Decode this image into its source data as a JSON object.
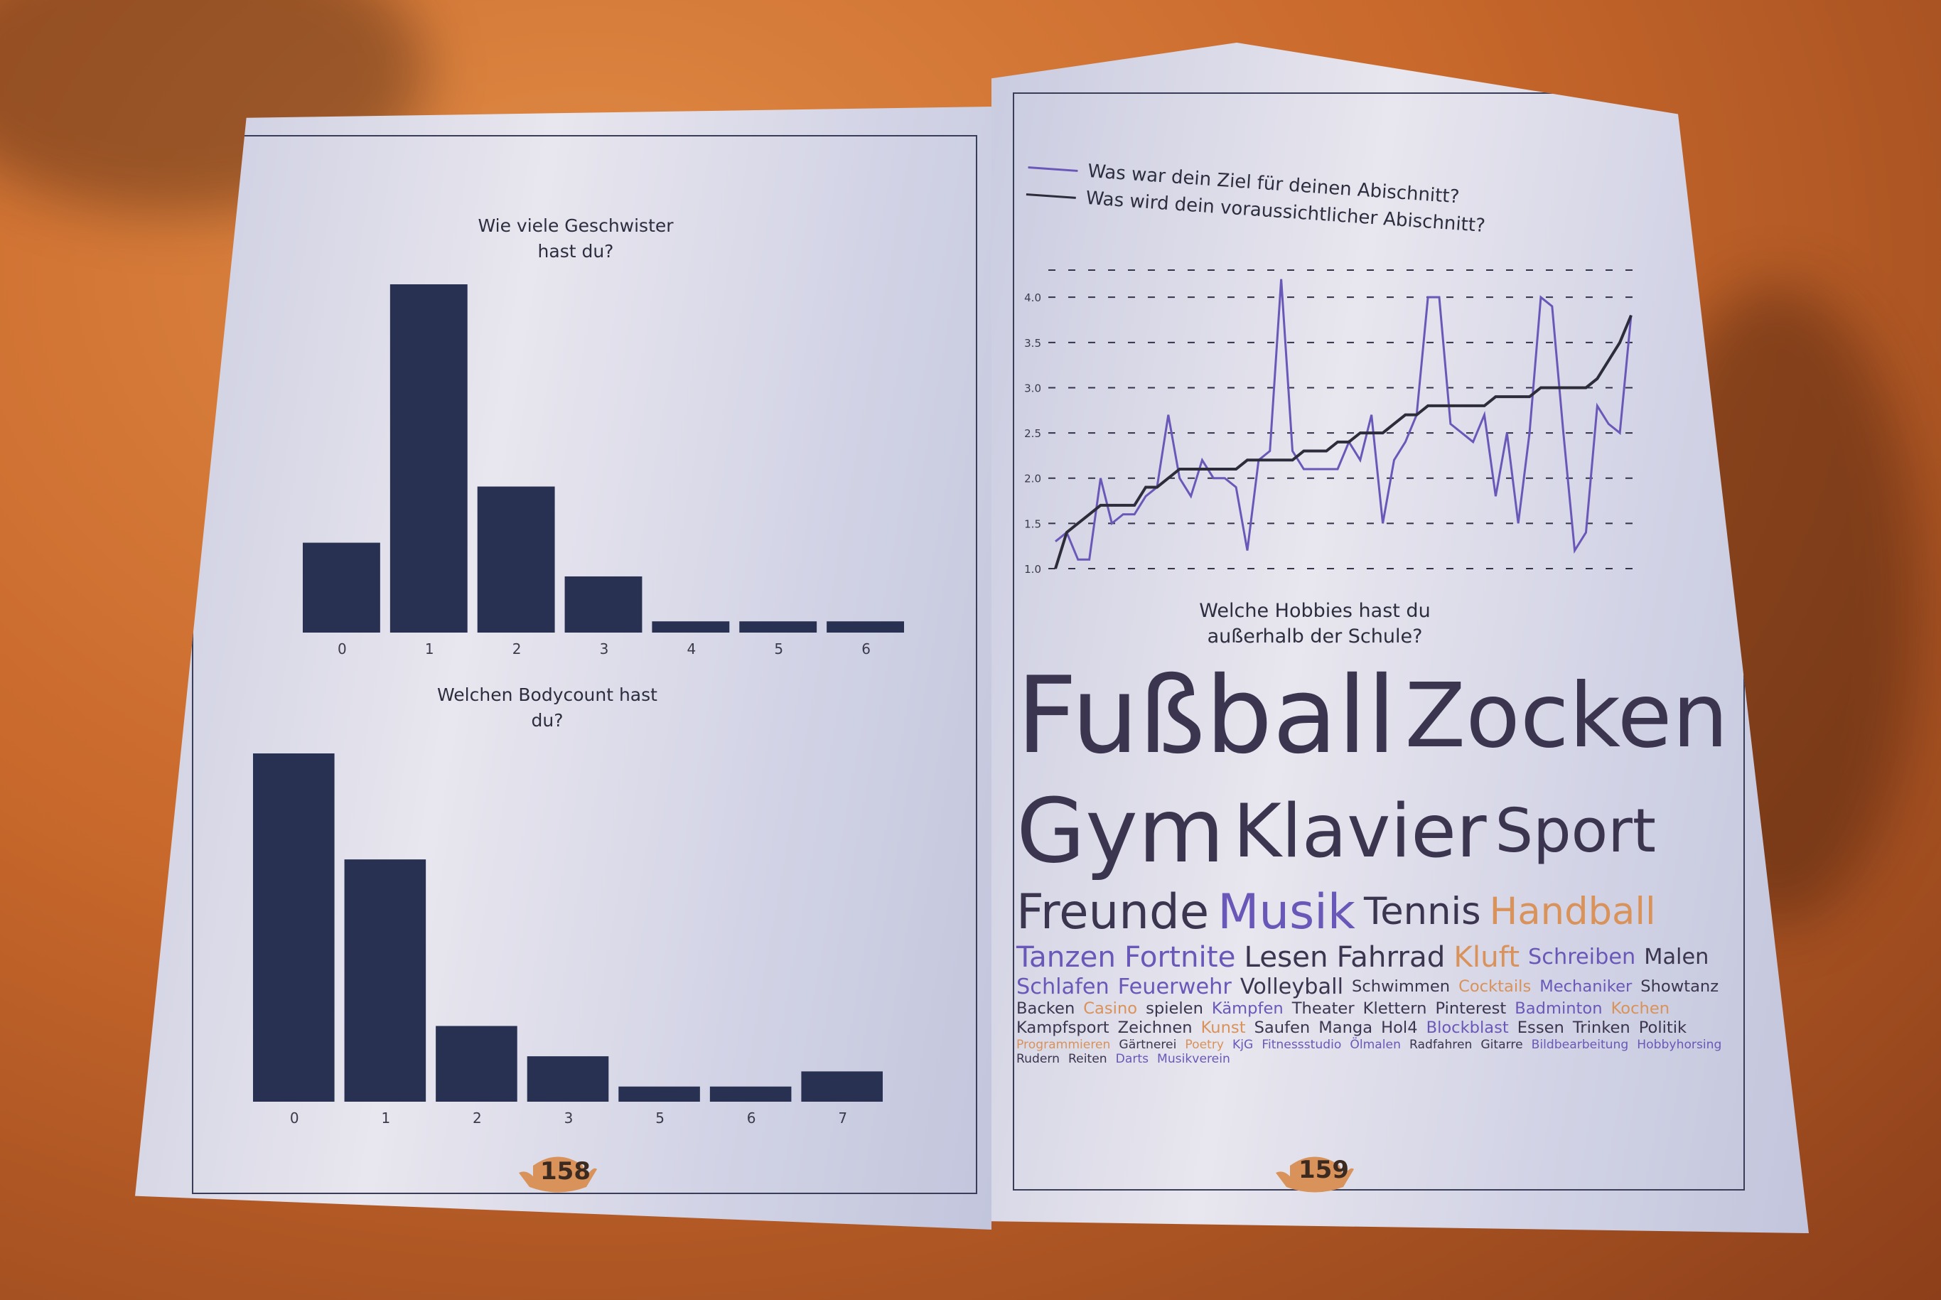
{
  "colors": {
    "bar": "#283152",
    "ziel": "#6a58b8",
    "voraussichtlich": "#2c2c3a",
    "cloud_dark": "#3b3550",
    "cloud_purple": "#6a58b8",
    "cloud_orange": "#d8925a",
    "page_number": "#d8925a"
  },
  "left_page": {
    "page_number": "158"
  },
  "right_page": {
    "page_number": "159"
  },
  "chart_data": [
    {
      "type": "bar",
      "title": "Wie viele Geschwister\nhast du?",
      "categories": [
        "0",
        "1",
        "2",
        "3",
        "4",
        "5",
        "6"
      ],
      "values": [
        8,
        31,
        13,
        5,
        1,
        1,
        1
      ],
      "grid": false
    },
    {
      "type": "bar",
      "title": "Welchen Bodycount hast\ndu?",
      "categories": [
        "0",
        "1",
        "2",
        "3",
        "5",
        "6",
        "7"
      ],
      "values": [
        23,
        16,
        5,
        3,
        1,
        1,
        2
      ],
      "grid": false
    },
    {
      "type": "line",
      "title": "",
      "ylim": [
        1.0,
        4.3
      ],
      "yticks": [
        "1.0",
        "1.5",
        "2.0",
        "2.5",
        "3.0",
        "3.5",
        "4.0"
      ],
      "grid": true,
      "legend": "top-left",
      "series": [
        {
          "name": "Was war dein Ziel für deinen Abischnitt?",
          "color": "#6a58b8",
          "values": [
            1.3,
            1.4,
            1.1,
            1.1,
            2.0,
            1.5,
            1.6,
            1.6,
            1.8,
            1.9,
            2.7,
            2.0,
            1.8,
            2.2,
            2.0,
            2.0,
            1.9,
            1.2,
            2.2,
            2.3,
            4.2,
            2.3,
            2.1,
            2.1,
            2.1,
            2.1,
            2.4,
            2.2,
            2.7,
            1.5,
            2.2,
            2.4,
            2.7,
            4.0,
            4.0,
            2.6,
            2.5,
            2.4,
            2.7,
            1.8,
            2.5,
            1.5,
            2.5,
            4.0,
            3.9,
            2.5,
            1.2,
            1.4,
            2.8,
            2.6,
            2.5,
            3.8
          ]
        },
        {
          "name": "Was wird dein voraussichtlicher Abischnitt?",
          "color": "#2c2c3a",
          "values": [
            1.0,
            1.4,
            1.5,
            1.6,
            1.7,
            1.7,
            1.7,
            1.7,
            1.9,
            1.9,
            2.0,
            2.1,
            2.1,
            2.1,
            2.1,
            2.1,
            2.1,
            2.2,
            2.2,
            2.2,
            2.2,
            2.2,
            2.3,
            2.3,
            2.3,
            2.4,
            2.4,
            2.5,
            2.5,
            2.5,
            2.6,
            2.7,
            2.7,
            2.8,
            2.8,
            2.8,
            2.8,
            2.8,
            2.8,
            2.9,
            2.9,
            2.9,
            2.9,
            3.0,
            3.0,
            3.0,
            3.0,
            3.0,
            3.1,
            3.3,
            3.5,
            3.8
          ]
        }
      ]
    },
    {
      "type": "wordcloud",
      "title": "Welche Hobbies hast du\naußerhalb der Schule?",
      "words": [
        {
          "text": "Schreiben",
          "weight": 3,
          "color": "purple"
        },
        {
          "text": "Schwimmen",
          "weight": 2,
          "color": "dark"
        },
        {
          "text": "Cocktails",
          "weight": 2,
          "color": "orange"
        },
        {
          "text": "Tanzen",
          "weight": 4,
          "color": "purple"
        },
        {
          "text": "Freunde",
          "weight": 6,
          "color": "dark"
        },
        {
          "text": "Klavier",
          "weight": 8,
          "color": "dark"
        },
        {
          "text": "Mechaniker",
          "weight": 2,
          "color": "purple"
        },
        {
          "text": "Programmieren",
          "weight": 1,
          "color": "orange"
        },
        {
          "text": "Fortnite",
          "weight": 4,
          "color": "purple"
        },
        {
          "text": "Showtanz",
          "weight": 2,
          "color": "dark"
        },
        {
          "text": "Gärtnerei",
          "weight": 1,
          "color": "dark"
        },
        {
          "text": "Lesen",
          "weight": 4,
          "color": "dark"
        },
        {
          "text": "Backen",
          "weight": 2,
          "color": "dark"
        },
        {
          "text": "Casino",
          "weight": 2,
          "color": "orange"
        },
        {
          "text": "Poetry",
          "weight": 1,
          "color": "orange"
        },
        {
          "text": "spielen",
          "weight": 2,
          "color": "dark"
        },
        {
          "text": "Zocken",
          "weight": 9,
          "color": "dark"
        },
        {
          "text": "Kämpfen",
          "weight": 2,
          "color": "purple"
        },
        {
          "text": "Theater",
          "weight": 2,
          "color": "dark"
        },
        {
          "text": "KjG",
          "weight": 1,
          "color": "purple"
        },
        {
          "text": "Klettern",
          "weight": 2,
          "color": "dark"
        },
        {
          "text": "Malen",
          "weight": 3,
          "color": "dark"
        },
        {
          "text": "Fußball",
          "weight": 10,
          "color": "dark"
        },
        {
          "text": "Pinterest",
          "weight": 2,
          "color": "dark"
        },
        {
          "text": "Fitnessstudio",
          "weight": 1,
          "color": "purple"
        },
        {
          "text": "Schlafen",
          "weight": 3,
          "color": "purple"
        },
        {
          "text": "Ölmalen",
          "weight": 1,
          "color": "purple"
        },
        {
          "text": "Badminton",
          "weight": 2,
          "color": "purple"
        },
        {
          "text": "Kochen",
          "weight": 2,
          "color": "orange"
        },
        {
          "text": "Kampfsport",
          "weight": 2,
          "color": "dark"
        },
        {
          "text": "Zeichnen",
          "weight": 2,
          "color": "dark"
        },
        {
          "text": "Kunst",
          "weight": 2,
          "color": "orange"
        },
        {
          "text": "Sport",
          "weight": 7,
          "color": "dark"
        },
        {
          "text": "Saufen",
          "weight": 2,
          "color": "dark"
        },
        {
          "text": "Radfahren",
          "weight": 1,
          "color": "dark"
        },
        {
          "text": "Fahrrad",
          "weight": 4,
          "color": "dark"
        },
        {
          "text": "Gitarre",
          "weight": 1,
          "color": "dark"
        },
        {
          "text": "Musik",
          "weight": 6,
          "color": "purple"
        },
        {
          "text": "Bildbearbeitung",
          "weight": 1,
          "color": "purple"
        },
        {
          "text": "Manga",
          "weight": 2,
          "color": "dark"
        },
        {
          "text": "Hobbyhorsing",
          "weight": 1,
          "color": "purple"
        },
        {
          "text": "Rudern",
          "weight": 1,
          "color": "dark"
        },
        {
          "text": "Kluft",
          "weight": 4,
          "color": "orange"
        },
        {
          "text": "Hol4",
          "weight": 2,
          "color": "dark"
        },
        {
          "text": "Gym",
          "weight": 9,
          "color": "dark"
        },
        {
          "text": "Feuerwehr",
          "weight": 3,
          "color": "purple"
        },
        {
          "text": "Blockblast",
          "weight": 2,
          "color": "purple"
        },
        {
          "text": "Essen",
          "weight": 2,
          "color": "dark"
        },
        {
          "text": "Reiten",
          "weight": 1,
          "color": "dark"
        },
        {
          "text": "Volleyball",
          "weight": 3,
          "color": "dark"
        },
        {
          "text": "Tennis",
          "weight": 5,
          "color": "dark"
        },
        {
          "text": "Darts",
          "weight": 1,
          "color": "purple"
        },
        {
          "text": "Musikverein",
          "weight": 1,
          "color": "purple"
        },
        {
          "text": "Trinken",
          "weight": 2,
          "color": "dark"
        },
        {
          "text": "Politik",
          "weight": 2,
          "color": "dark"
        },
        {
          "text": "Handball",
          "weight": 5,
          "color": "orange"
        }
      ]
    }
  ]
}
